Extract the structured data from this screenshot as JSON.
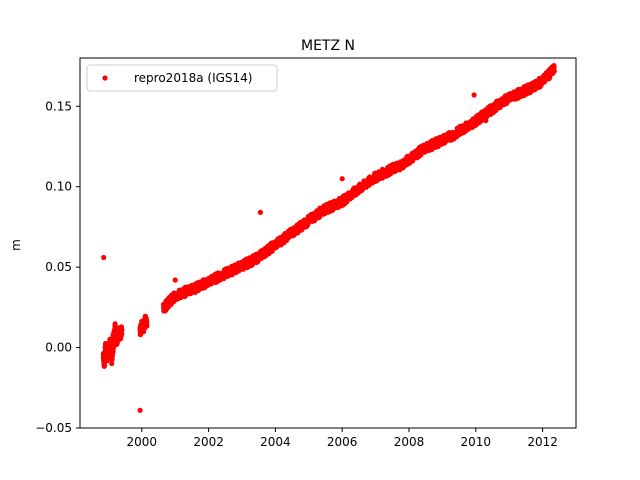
{
  "chart_data": {
    "type": "scatter",
    "title": "METZ N",
    "xlabel": "",
    "ylabel": "m",
    "xlim": [
      1998.15,
      2013.0
    ],
    "ylim": [
      -0.05,
      0.18
    ],
    "x_ticks": [
      2000,
      2002,
      2004,
      2006,
      2008,
      2010,
      2012
    ],
    "x_tick_labels": [
      "2000",
      "2002",
      "2004",
      "2006",
      "2008",
      "2010",
      "2012"
    ],
    "y_ticks": [
      -0.05,
      0.0,
      0.05,
      0.1,
      0.15
    ],
    "y_tick_labels": [
      "−0.05",
      "0.00",
      "0.05",
      "0.10",
      "0.15"
    ],
    "grid": false,
    "legend": {
      "position": "top-left",
      "entries": [
        "repro2018a (IGS14)"
      ]
    },
    "series": [
      {
        "name": "repro2018a (IGS14)",
        "color": "#ff0000",
        "marker": "circle",
        "points": [
          [
            1998.85,
            -0.004
          ],
          [
            1998.88,
            -0.01
          ],
          [
            1998.92,
            0.002
          ],
          [
            1998.96,
            -0.006
          ],
          [
            1999.0,
            -0.002
          ],
          [
            1999.05,
            0.004
          ],
          [
            1999.1,
            0.0
          ],
          [
            1999.15,
            0.006
          ],
          [
            1999.2,
            0.008
          ],
          [
            1999.25,
            0.004
          ],
          [
            1999.3,
            0.01
          ],
          [
            1999.35,
            0.007
          ],
          [
            1999.4,
            0.011
          ],
          [
            1999.1,
            -0.008
          ],
          [
            1999.2,
            0.012
          ],
          [
            1999.95,
            0.01
          ],
          [
            2000.0,
            0.014
          ],
          [
            2000.05,
            0.012
          ],
          [
            2000.1,
            0.017
          ],
          [
            2000.15,
            0.016
          ],
          [
            2000.65,
            0.024
          ],
          [
            2000.75,
            0.027
          ],
          [
            2000.85,
            0.029
          ],
          [
            2000.95,
            0.031
          ],
          [
            2001.1,
            0.033
          ],
          [
            2001.25,
            0.034
          ],
          [
            2001.4,
            0.036
          ],
          [
            2001.6,
            0.037
          ],
          [
            2001.8,
            0.039
          ],
          [
            2002.0,
            0.041
          ],
          [
            2002.2,
            0.043
          ],
          [
            2002.4,
            0.045
          ],
          [
            2002.6,
            0.047
          ],
          [
            2002.8,
            0.049
          ],
          [
            2003.0,
            0.051
          ],
          [
            2003.2,
            0.053
          ],
          [
            2003.4,
            0.055
          ],
          [
            2003.6,
            0.058
          ],
          [
            2003.8,
            0.061
          ],
          [
            2004.0,
            0.064
          ],
          [
            2004.2,
            0.067
          ],
          [
            2004.4,
            0.07
          ],
          [
            2004.6,
            0.073
          ],
          [
            2004.8,
            0.076
          ],
          [
            2005.0,
            0.079
          ],
          [
            2005.2,
            0.082
          ],
          [
            2005.4,
            0.085
          ],
          [
            2005.6,
            0.087
          ],
          [
            2005.8,
            0.089
          ],
          [
            2006.0,
            0.091
          ],
          [
            2006.2,
            0.094
          ],
          [
            2006.4,
            0.097
          ],
          [
            2006.6,
            0.1
          ],
          [
            2006.8,
            0.103
          ],
          [
            2007.0,
            0.106
          ],
          [
            2007.2,
            0.108
          ],
          [
            2007.4,
            0.11
          ],
          [
            2007.6,
            0.112
          ],
          [
            2007.8,
            0.114
          ],
          [
            2008.0,
            0.117
          ],
          [
            2008.2,
            0.12
          ],
          [
            2008.4,
            0.123
          ],
          [
            2008.6,
            0.125
          ],
          [
            2008.8,
            0.127
          ],
          [
            2009.0,
            0.129
          ],
          [
            2009.2,
            0.131
          ],
          [
            2009.4,
            0.133
          ],
          [
            2009.6,
            0.136
          ],
          [
            2009.8,
            0.138
          ],
          [
            2010.0,
            0.141
          ],
          [
            2010.2,
            0.144
          ],
          [
            2010.4,
            0.147
          ],
          [
            2010.6,
            0.15
          ],
          [
            2010.8,
            0.153
          ],
          [
            2011.0,
            0.155
          ],
          [
            2011.2,
            0.157
          ],
          [
            2011.4,
            0.159
          ],
          [
            2011.6,
            0.161
          ],
          [
            2011.8,
            0.163
          ],
          [
            2012.0,
            0.166
          ],
          [
            2012.2,
            0.17
          ],
          [
            2012.35,
            0.173
          ]
        ],
        "outliers": [
          [
            1998.86,
            0.056
          ],
          [
            1999.95,
            -0.039
          ],
          [
            2001.0,
            0.042
          ],
          [
            2003.55,
            0.084
          ],
          [
            2006.0,
            0.105
          ],
          [
            2009.95,
            0.157
          ],
          [
            2010.3,
            0.141
          ]
        ]
      }
    ]
  }
}
